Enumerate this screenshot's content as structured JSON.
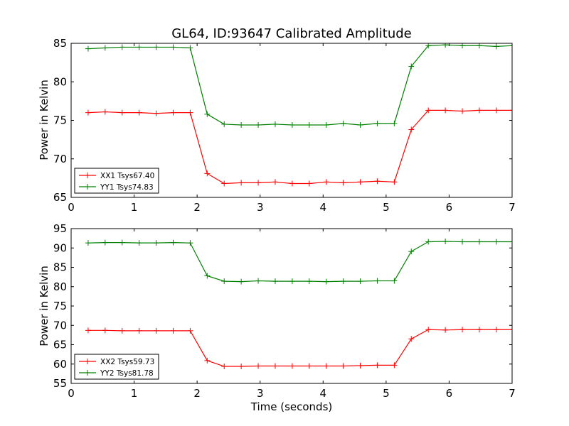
{
  "chart_data": [
    {
      "type": "line",
      "title": "GL64, ID:93647 Calibrated Amplitude",
      "xlabel": "",
      "ylabel": "Power in Kelvin",
      "xlim": [
        0,
        7
      ],
      "ylim": [
        65,
        85
      ],
      "xticks": [
        0,
        1,
        2,
        3,
        4,
        5,
        6,
        7
      ],
      "yticks": [
        65,
        70,
        75,
        80,
        85
      ],
      "legend_position": "lower-left",
      "x": [
        0.27,
        0.54,
        0.81,
        1.08,
        1.35,
        1.62,
        1.89,
        2.16,
        2.43,
        2.7,
        2.97,
        3.24,
        3.51,
        3.78,
        4.05,
        4.32,
        4.59,
        4.86,
        5.13,
        5.4,
        5.67,
        5.94,
        6.21,
        6.48,
        6.75,
        7.02
      ],
      "series": [
        {
          "name": "XX1 Tsys67.40",
          "color": "#ff0000",
          "values": [
            76.0,
            76.1,
            76.0,
            76.0,
            75.9,
            76.0,
            76.0,
            68.1,
            66.8,
            66.9,
            66.9,
            67.0,
            66.8,
            66.8,
            67.0,
            66.9,
            67.0,
            67.1,
            67.0,
            73.8,
            76.3,
            76.3,
            76.2,
            76.3,
            76.3,
            76.3
          ]
        },
        {
          "name": "YY1 Tsys74.83",
          "color": "#008000",
          "values": [
            84.3,
            84.4,
            84.5,
            84.5,
            84.5,
            84.5,
            84.4,
            75.8,
            74.5,
            74.4,
            74.4,
            74.5,
            74.4,
            74.4,
            74.4,
            74.6,
            74.4,
            74.6,
            74.6,
            82.0,
            84.7,
            84.8,
            84.7,
            84.7,
            84.6,
            84.7
          ]
        }
      ]
    },
    {
      "type": "line",
      "title": "",
      "xlabel": "Time (seconds)",
      "ylabel": "Power in Kelvin",
      "xlim": [
        0,
        7
      ],
      "ylim": [
        55,
        95
      ],
      "xticks": [
        0,
        1,
        2,
        3,
        4,
        5,
        6,
        7
      ],
      "yticks": [
        55,
        60,
        65,
        70,
        75,
        80,
        85,
        90,
        95
      ],
      "legend_position": "lower-left",
      "x": [
        0.27,
        0.54,
        0.81,
        1.08,
        1.35,
        1.62,
        1.89,
        2.16,
        2.43,
        2.7,
        2.97,
        3.24,
        3.51,
        3.78,
        4.05,
        4.32,
        4.59,
        4.86,
        5.13,
        5.4,
        5.67,
        5.94,
        6.21,
        6.48,
        6.75,
        7.02
      ],
      "series": [
        {
          "name": "XX2 Tsys59.73",
          "color": "#ff0000",
          "values": [
            68.7,
            68.7,
            68.6,
            68.6,
            68.6,
            68.6,
            68.6,
            60.9,
            59.4,
            59.4,
            59.5,
            59.5,
            59.5,
            59.5,
            59.5,
            59.5,
            59.6,
            59.7,
            59.7,
            66.5,
            68.9,
            68.8,
            68.9,
            68.9,
            68.9,
            68.9
          ]
        },
        {
          "name": "YY2 Tsys81.78",
          "color": "#008000",
          "values": [
            91.3,
            91.4,
            91.4,
            91.3,
            91.3,
            91.4,
            91.3,
            82.8,
            81.4,
            81.3,
            81.5,
            81.4,
            81.4,
            81.4,
            81.3,
            81.4,
            81.4,
            81.5,
            81.5,
            89.1,
            91.6,
            91.7,
            91.6,
            91.6,
            91.6,
            91.6
          ]
        }
      ]
    }
  ]
}
